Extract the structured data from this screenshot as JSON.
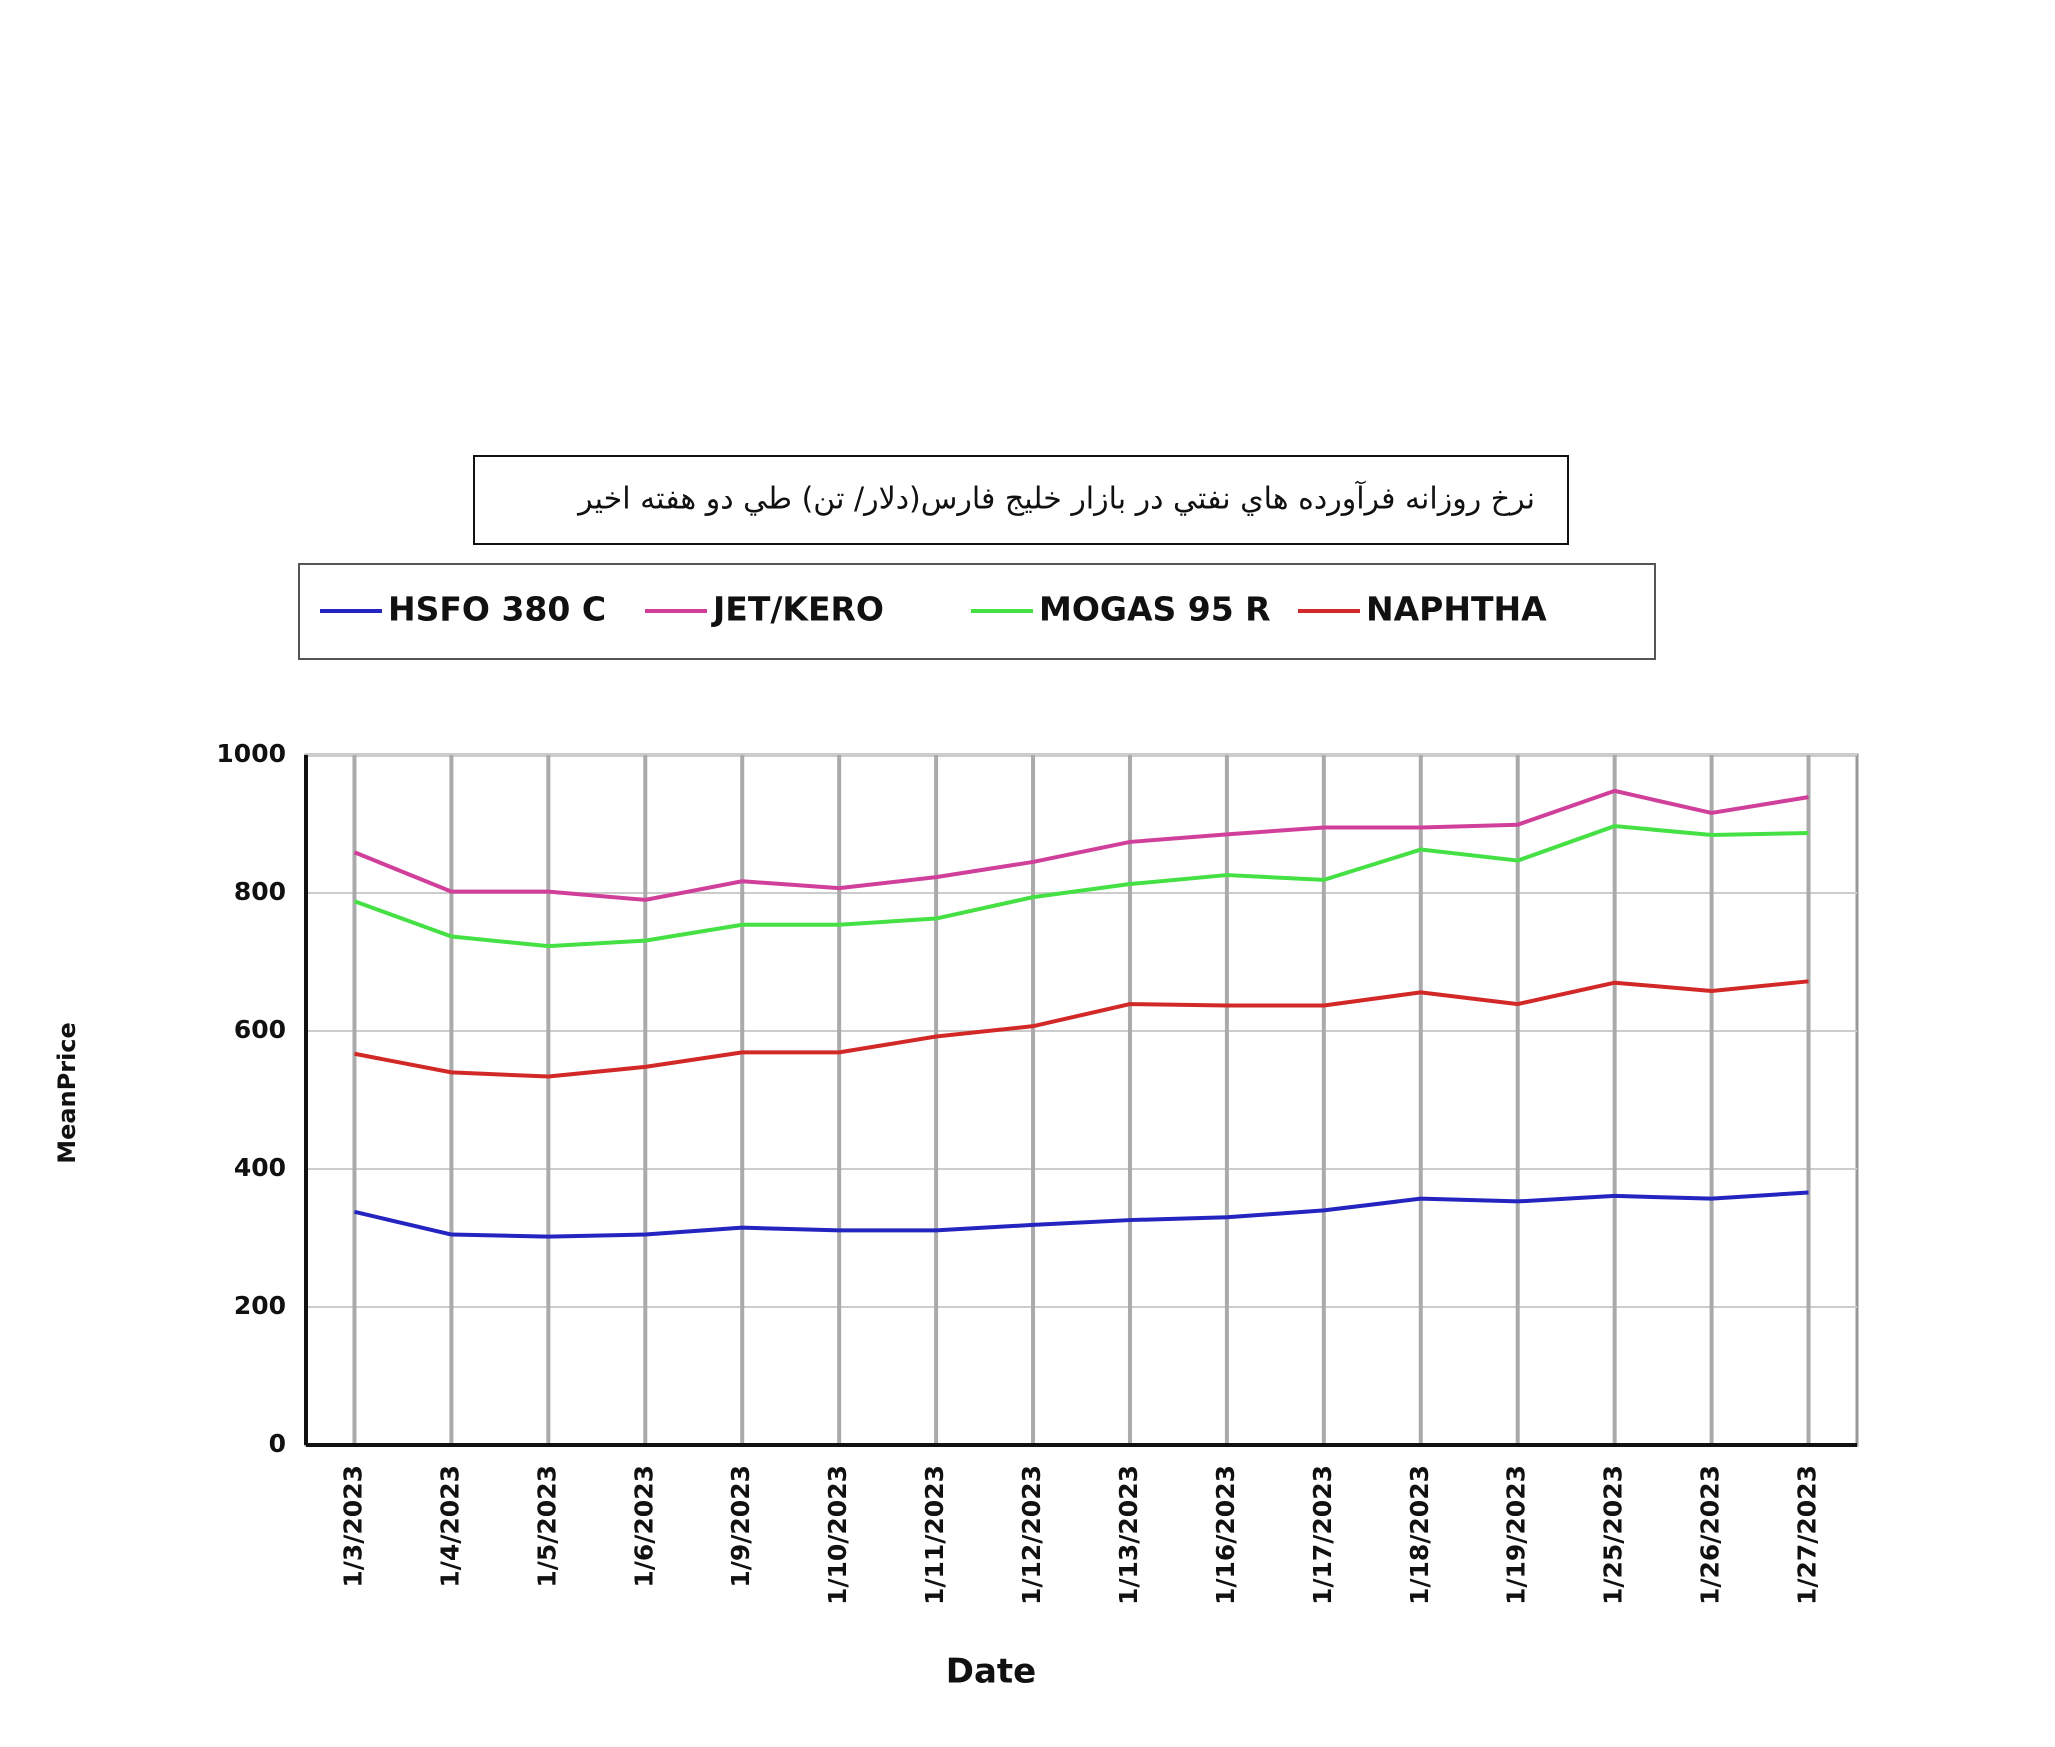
{
  "chart_data": {
    "type": "line",
    "title": "نرخ روزانه فرآورده هاي نفتي در بازار خليج فارس(دلار/ تن) طي دو هفته اخير",
    "x_label": "Date",
    "y_label": "MeanPrice",
    "categories": [
      "1/3/2023",
      "1/4/2023",
      "1/5/2023",
      "1/6/2023",
      "1/9/2023",
      "1/10/2023",
      "1/11/2023",
      "1/12/2023",
      "1/13/2023",
      "1/16/2023",
      "1/17/2023",
      "1/18/2023",
      "1/19/2023",
      "1/25/2023",
      "1/26/2023",
      "1/27/2023"
    ],
    "series": [
      {
        "name": "HSFO 380 C",
        "color": "#2424c0",
        "values": [
          338,
          305,
          302,
          305,
          315,
          311,
          311,
          319,
          326,
          330,
          340,
          357,
          353,
          361,
          357,
          366
        ]
      },
      {
        "name": "JET/KERO",
        "color": "#d0409a",
        "values": [
          859,
          802,
          802,
          790,
          817,
          807,
          823,
          845,
          874,
          885,
          895,
          895,
          899,
          948,
          916,
          939
        ]
      },
      {
        "name": "MOGAS 95 R",
        "color": "#44e044",
        "values": [
          788,
          737,
          723,
          731,
          754,
          754,
          763,
          794,
          813,
          826,
          819,
          863,
          847,
          897,
          884,
          887
        ]
      },
      {
        "name": "NAPHTHA",
        "color": "#d22828",
        "values": [
          567,
          540,
          534,
          548,
          569,
          569,
          592,
          607,
          639,
          637,
          637,
          656,
          639,
          670,
          658,
          672
        ]
      }
    ],
    "ylim": [
      0,
      1000
    ],
    "yticks": [
      0,
      200,
      400,
      600,
      800,
      1000
    ],
    "grid": true,
    "legend": "top"
  }
}
